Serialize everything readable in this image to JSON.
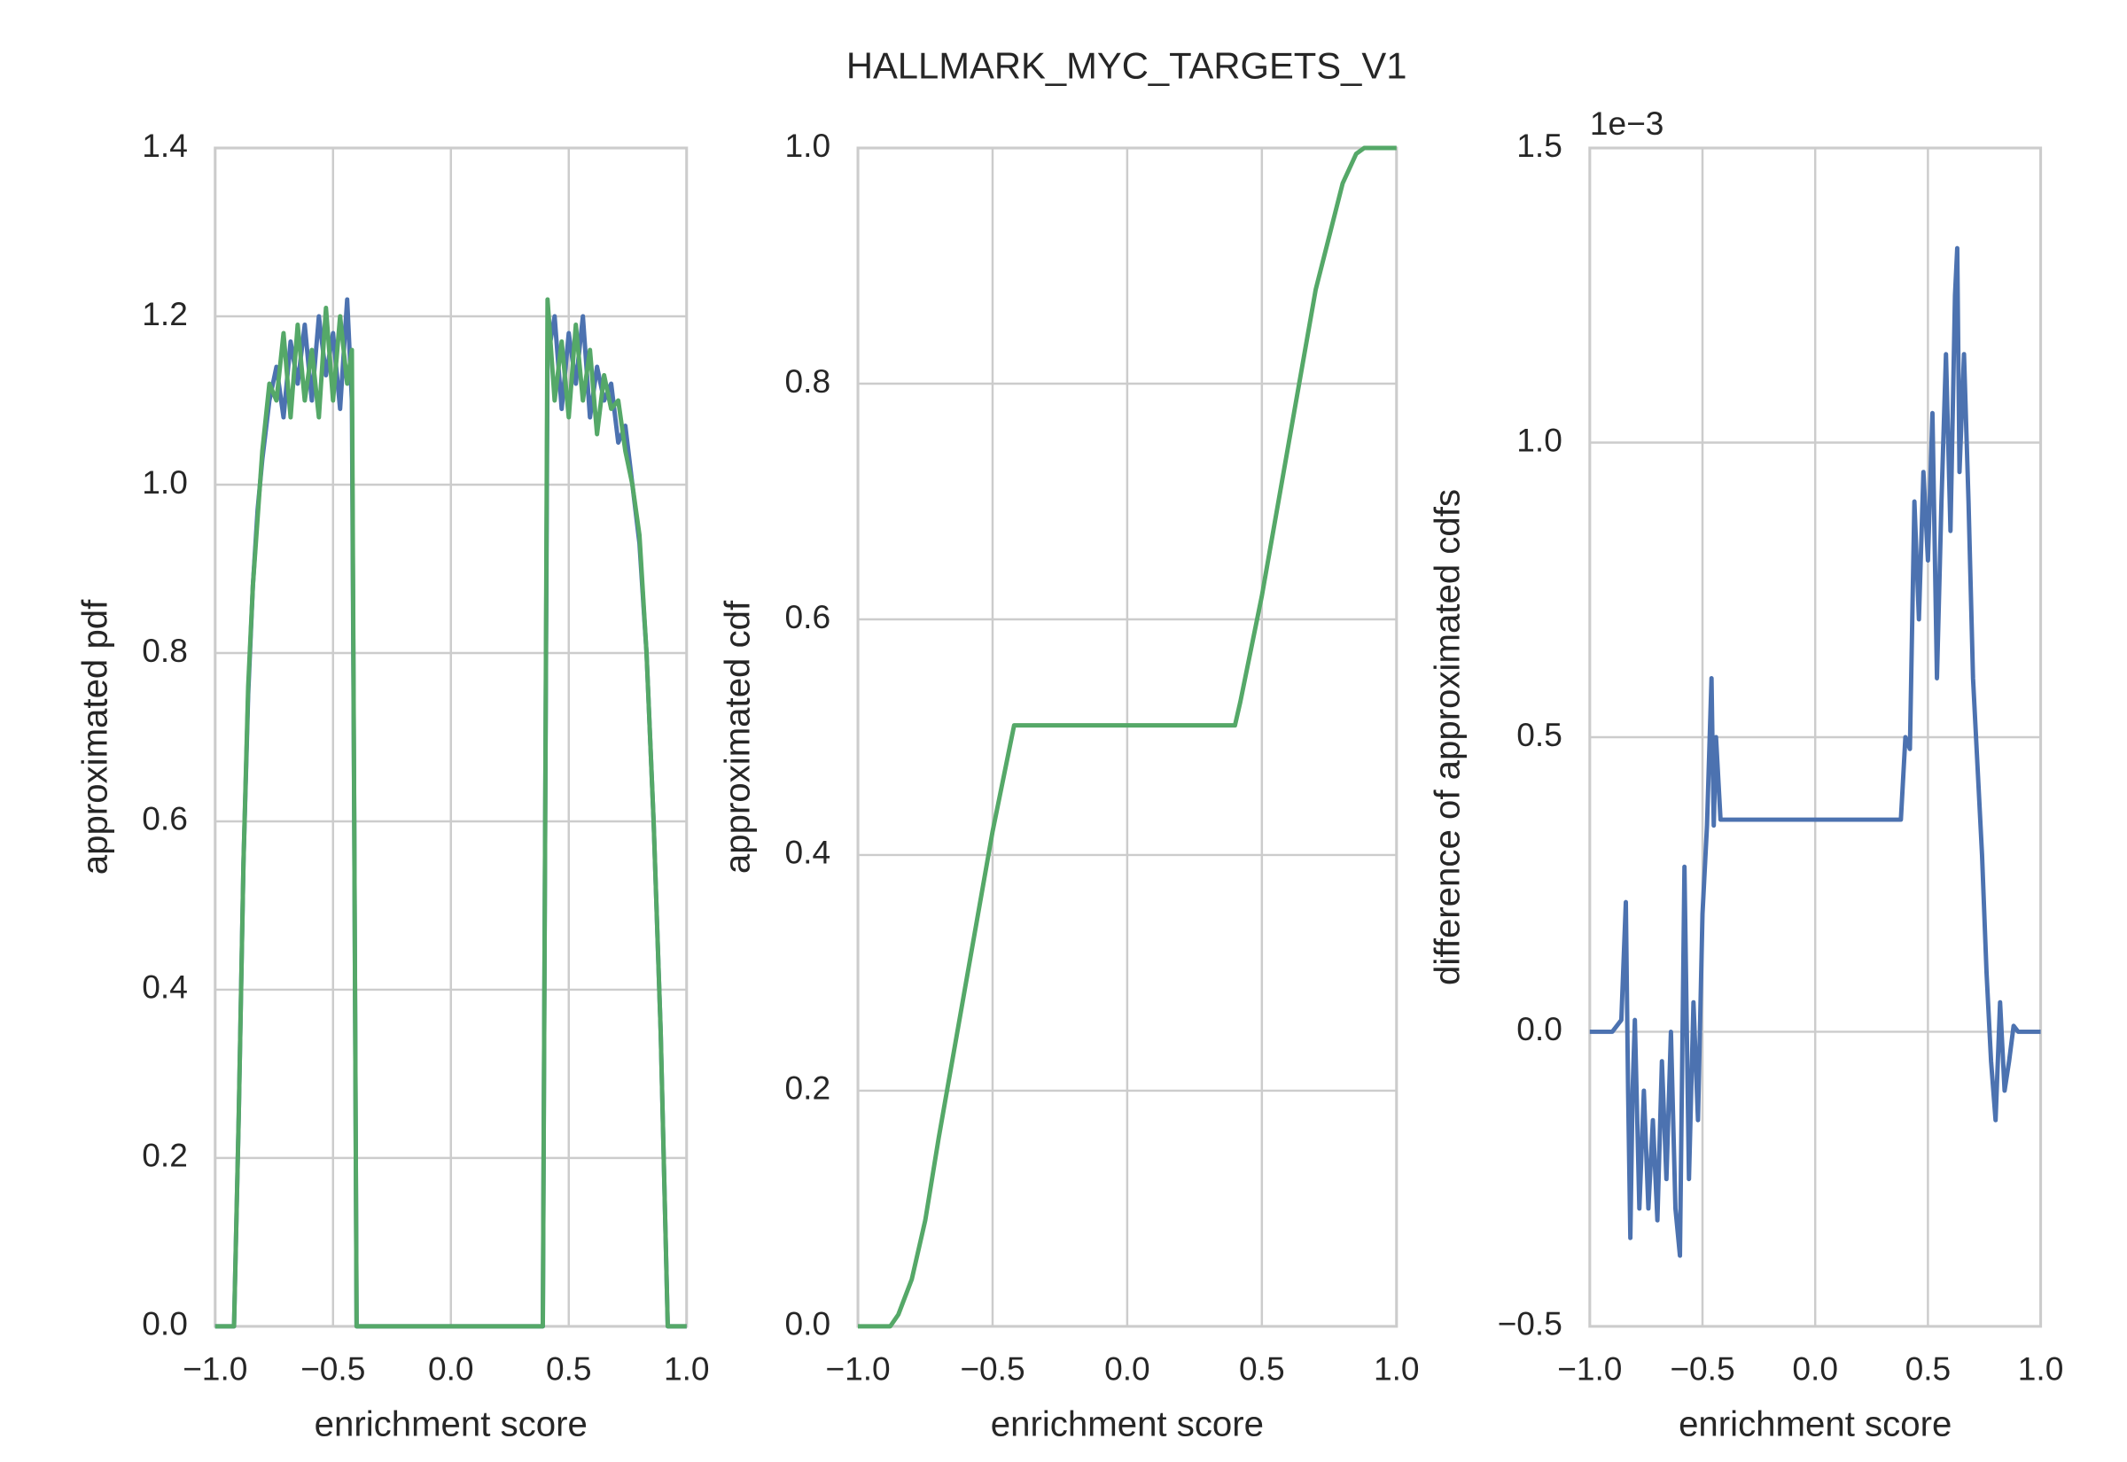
{
  "title": "HALLMARK_MYC_TARGETS_V1",
  "chart_data": [
    {
      "type": "line",
      "xlabel": "enrichment score",
      "ylabel": "approximated pdf",
      "xlim": [
        -1,
        1
      ],
      "ylim": [
        0,
        1.4
      ],
      "grid": true,
      "xticks": [
        {
          "value": -1,
          "label": "−1.0"
        },
        {
          "value": -0.5,
          "label": "−0.5"
        },
        {
          "value": 0,
          "label": "0.0"
        },
        0.5,
        {
          "value": 1,
          "label": "1.0"
        }
      ],
      "yticks": [
        {
          "value": 0,
          "label": "0.0"
        },
        0.2,
        0.4,
        0.6,
        0.8,
        {
          "value": 1,
          "label": "1.0"
        },
        1.2,
        1.4
      ],
      "x": [
        -1,
        -0.92,
        -0.9,
        -0.88,
        -0.86,
        -0.84,
        -0.82,
        -0.8,
        -0.77,
        -0.74,
        -0.71,
        -0.68,
        -0.65,
        -0.62,
        -0.59,
        -0.56,
        -0.53,
        -0.5,
        -0.47,
        -0.44,
        -0.42,
        -0.41,
        -0.4,
        0.39,
        0.4,
        0.41,
        0.44,
        0.47,
        0.5,
        0.53,
        0.56,
        0.59,
        0.62,
        0.65,
        0.68,
        0.71,
        0.74,
        0.77,
        0.8,
        0.83,
        0.86,
        0.89,
        0.92,
        1.0
      ],
      "series": [
        {
          "color": "#4c72b0",
          "values": [
            0,
            0,
            0.25,
            0.55,
            0.75,
            0.88,
            0.97,
            1.03,
            1.1,
            1.14,
            1.08,
            1.17,
            1.12,
            1.19,
            1.1,
            1.2,
            1.13,
            1.18,
            1.09,
            1.22,
            1.1,
            0.6,
            0,
            0,
            0.6,
            1.15,
            1.2,
            1.09,
            1.18,
            1.12,
            1.2,
            1.08,
            1.14,
            1.1,
            1.12,
            1.05,
            1.07,
            1.0,
            0.93,
            0.8,
            0.6,
            0.35,
            0,
            0
          ]
        },
        {
          "color": "#55a868",
          "values": [
            0,
            0,
            0.25,
            0.55,
            0.76,
            0.88,
            0.96,
            1.04,
            1.12,
            1.1,
            1.18,
            1.08,
            1.19,
            1.1,
            1.16,
            1.08,
            1.21,
            1.1,
            1.2,
            1.12,
            1.16,
            0.6,
            0,
            0,
            0.6,
            1.22,
            1.1,
            1.17,
            1.08,
            1.19,
            1.1,
            1.16,
            1.06,
            1.13,
            1.09,
            1.1,
            1.04,
            1.0,
            0.94,
            0.8,
            0.6,
            0.35,
            0,
            0
          ]
        }
      ]
    },
    {
      "type": "line",
      "xlabel": "enrichment score",
      "ylabel": "approximated cdf",
      "xlim": [
        -1,
        1
      ],
      "ylim": [
        0,
        1
      ],
      "grid": true,
      "xticks": [
        {
          "value": -1,
          "label": "−1.0"
        },
        {
          "value": -0.5,
          "label": "−0.5"
        },
        {
          "value": 0,
          "label": "0.0"
        },
        0.5,
        {
          "value": 1,
          "label": "1.0"
        }
      ],
      "yticks": [
        {
          "value": 0,
          "label": "0.0"
        },
        0.2,
        0.4,
        0.6,
        0.8,
        {
          "value": 1,
          "label": "1.0"
        }
      ],
      "x": [
        -1,
        -0.88,
        -0.85,
        -0.8,
        -0.75,
        -0.7,
        -0.6,
        -0.5,
        -0.42,
        -0.4,
        0,
        0.4,
        0.42,
        0.5,
        0.6,
        0.7,
        0.8,
        0.85,
        0.88,
        1
      ],
      "series": [
        {
          "color": "#55a868",
          "values": [
            0,
            0,
            0.01,
            0.04,
            0.09,
            0.16,
            0.29,
            0.42,
            0.51,
            0.51,
            0.51,
            0.51,
            0.53,
            0.62,
            0.75,
            0.88,
            0.97,
            0.995,
            1.0,
            1.0
          ]
        }
      ]
    },
    {
      "type": "line",
      "xlabel": "enrichment score",
      "ylabel": "difference of approximated cdfs",
      "offset_text": "1e−3",
      "xlim": [
        -1,
        1
      ],
      "ylim": [
        -0.0005,
        0.0015
      ],
      "grid": true,
      "xticks": [
        {
          "value": -1,
          "label": "−1.0"
        },
        {
          "value": -0.5,
          "label": "−0.5"
        },
        {
          "value": 0,
          "label": "0.0"
        },
        0.5,
        {
          "value": 1,
          "label": "1.0"
        }
      ],
      "yticks": [
        {
          "value": -0.0005,
          "label": "−0.5"
        },
        {
          "value": 0,
          "label": "0.0"
        },
        {
          "value": 0.0005,
          "label": "0.5"
        },
        {
          "value": 0.001,
          "label": "1.0"
        },
        {
          "value": 0.0015,
          "label": "1.5"
        }
      ],
      "x": [
        -1,
        -0.9,
        -0.86,
        -0.84,
        -0.83,
        -0.82,
        -0.81,
        -0.8,
        -0.78,
        -0.76,
        -0.74,
        -0.72,
        -0.7,
        -0.68,
        -0.66,
        -0.64,
        -0.62,
        -0.6,
        -0.58,
        -0.56,
        -0.54,
        -0.52,
        -0.5,
        -0.48,
        -0.46,
        -0.45,
        -0.44,
        -0.42,
        -0.4,
        0,
        0.38,
        0.4,
        0.42,
        0.44,
        0.46,
        0.48,
        0.5,
        0.52,
        0.54,
        0.56,
        0.58,
        0.6,
        0.62,
        0.63,
        0.64,
        0.66,
        0.68,
        0.7,
        0.72,
        0.74,
        0.76,
        0.78,
        0.8,
        0.82,
        0.84,
        0.86,
        0.88,
        0.9,
        1.0
      ],
      "series": [
        {
          "color": "#4c72b0",
          "values": [
            0,
            0,
            2e-05,
            0.00022,
            -0.0001,
            -0.00035,
            -0.0001,
            2e-05,
            -0.0003,
            -0.0001,
            -0.0003,
            -0.00015,
            -0.00032,
            -5e-05,
            -0.00025,
            0,
            -0.0003,
            -0.00038,
            0.00028,
            -0.00025,
            5e-05,
            -0.00015,
            0.0002,
            0.00035,
            0.0006,
            0.00035,
            0.0005,
            0.00036,
            0.00036,
            0.00036,
            0.00036,
            0.0005,
            0.00048,
            0.0009,
            0.0007,
            0.00095,
            0.0008,
            0.00105,
            0.0006,
            0.0009,
            0.00115,
            0.00085,
            0.00125,
            0.00133,
            0.00095,
            0.00115,
            0.0009,
            0.0006,
            0.00045,
            0.0003,
            0.0001,
            -5e-05,
            -0.00015,
            5e-05,
            -0.0001,
            -5e-05,
            1e-05,
            0,
            0
          ]
        }
      ]
    }
  ]
}
